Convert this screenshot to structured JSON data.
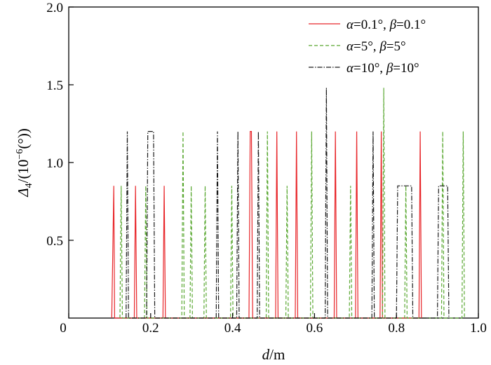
{
  "chart_data": {
    "type": "line",
    "title": "",
    "xlabel": {
      "var": "d",
      "unit": "/m"
    },
    "ylabel": {
      "var": "Δ",
      "sub": "4",
      "unit": "/(10",
      "exp": "−6",
      "unit_end": "(°))"
    },
    "xlim": [
      0,
      1.0
    ],
    "ylim": [
      0,
      2.0
    ],
    "xticks": [
      0,
      0.2,
      0.4,
      0.6,
      0.8,
      1.0
    ],
    "xtick_labels": [
      "0",
      "0.2",
      "0.4",
      "0.6",
      "0.8",
      "1.0"
    ],
    "yticks": [
      0.5,
      1.0,
      1.5,
      2.0
    ],
    "ytick_labels": [
      "0.5",
      "1.0",
      "1.5",
      "2.0"
    ],
    "grid": false,
    "legend_position": "top-right",
    "series": [
      {
        "name": "α=0.1°, β=0.1°",
        "legend": {
          "a": "α",
          "a_val": "=0.1°, ",
          "b": "β",
          "b_val": "=0.1°"
        },
        "color": "#e8262a",
        "dash": "solid",
        "x": [
          0.105,
          0.11,
          0.112,
          0.16,
          0.163,
          0.166,
          0.23,
          0.233,
          0.236,
          0.44,
          0.443,
          0.446,
          0.449,
          0.505,
          0.508,
          0.511,
          0.553,
          0.556,
          0.559,
          0.648,
          0.651,
          0.654,
          0.7,
          0.703,
          0.706,
          0.76,
          0.763,
          0.766,
          0.855,
          0.858,
          0.861
        ],
        "y": [
          0,
          0.85,
          0,
          0,
          0.85,
          0,
          0,
          0.85,
          0,
          0,
          1.2,
          1.2,
          0,
          0,
          1.2,
          0,
          0,
          1.2,
          0,
          0,
          1.2,
          0,
          0,
          1.2,
          0,
          0,
          1.2,
          0,
          0,
          1.2,
          0
        ]
      },
      {
        "name": "α=5°, β=5°",
        "legend": {
          "a": "α",
          "a_val": "=5°, ",
          "b": "β",
          "b_val": "=5°"
        },
        "color": "#5aa832",
        "dash": "dashed",
        "x": [
          0.125,
          0.128,
          0.131,
          0.185,
          0.188,
          0.191,
          0.276,
          0.279,
          0.282,
          0.296,
          0.299,
          0.302,
          0.33,
          0.333,
          0.336,
          0.395,
          0.398,
          0.401,
          0.482,
          0.485,
          0.488,
          0.53,
          0.533,
          0.536,
          0.59,
          0.593,
          0.596,
          0.685,
          0.688,
          0.691,
          0.766,
          0.769,
          0.772,
          0.82,
          0.823,
          0.826,
          0.91,
          0.913,
          0.916,
          0.96,
          0.963,
          0.966
        ],
        "y": [
          0,
          0.85,
          0,
          0,
          0.85,
          0,
          0,
          1.2,
          0,
          0,
          0.85,
          0,
          0,
          0.85,
          0,
          0,
          0.85,
          0,
          0,
          1.2,
          0,
          0,
          0.85,
          0,
          0,
          1.2,
          0,
          0,
          0.85,
          0,
          0,
          1.48,
          0,
          0,
          0.85,
          0,
          0,
          1.2,
          0,
          0,
          1.2,
          0
        ]
      },
      {
        "name": "α=10°, β=10°",
        "legend": {
          "a": "α",
          "a_val": "=10°, ",
          "b": "β",
          "b_val": "=10°"
        },
        "color": "#1a1a1a",
        "dash": "dashdot",
        "x": [
          0.14,
          0.143,
          0.146,
          0.19,
          0.193,
          0.207,
          0.21,
          0.36,
          0.363,
          0.366,
          0.41,
          0.413,
          0.416,
          0.46,
          0.463,
          0.466,
          0.626,
          0.629,
          0.632,
          0.74,
          0.743,
          0.746,
          0.8,
          0.803,
          0.837,
          0.84,
          0.9,
          0.903,
          0.925,
          0.928
        ],
        "y": [
          0,
          1.2,
          0,
          0,
          1.2,
          1.2,
          0,
          0,
          1.2,
          0,
          0,
          1.2,
          0,
          0,
          1.2,
          0,
          0,
          1.48,
          0,
          0,
          1.2,
          0,
          0,
          0.85,
          0.85,
          0,
          0,
          0.85,
          0.85,
          0
        ]
      }
    ]
  }
}
